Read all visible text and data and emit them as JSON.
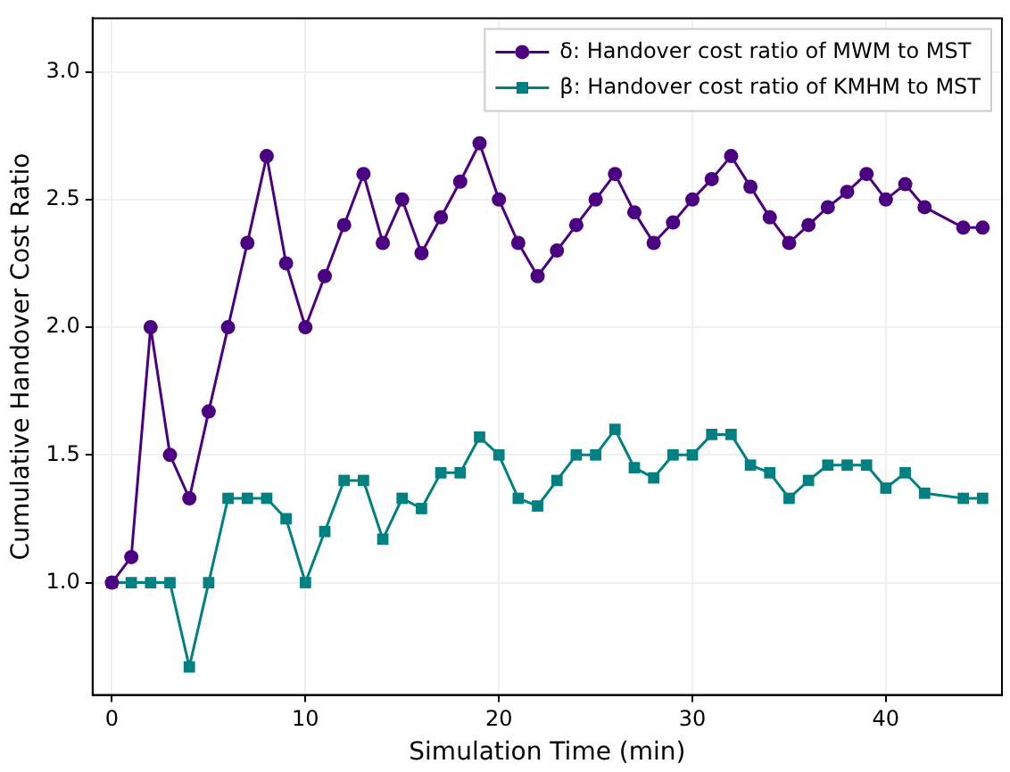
{
  "chart_data": {
    "type": "line",
    "xlabel": "Simulation Time (min)",
    "ylabel": "Cumulative Handover Cost Ratio",
    "x": [
      0,
      1,
      2,
      3,
      4,
      5,
      6,
      7,
      8,
      9,
      10,
      11,
      12,
      13,
      14,
      15,
      16,
      17,
      18,
      19,
      20,
      21,
      22,
      23,
      24,
      25,
      26,
      27,
      28,
      29,
      30,
      31,
      32,
      33,
      34,
      35,
      36,
      37,
      38,
      39,
      40,
      41,
      42,
      44,
      45
    ],
    "series": [
      {
        "name": "δ: Handover cost ratio of MWM to MST",
        "color": "#4b0082",
        "marker": "circle",
        "values": [
          1.0,
          1.1,
          2.0,
          1.5,
          1.33,
          1.67,
          2.0,
          2.33,
          2.67,
          2.25,
          2.0,
          2.2,
          2.4,
          2.6,
          2.33,
          2.5,
          2.29,
          2.43,
          2.57,
          2.72,
          2.5,
          2.33,
          2.2,
          2.3,
          2.4,
          2.5,
          2.6,
          2.45,
          2.33,
          2.41,
          2.5,
          2.58,
          2.67,
          2.55,
          2.43,
          2.33,
          2.4,
          2.47,
          2.53,
          2.6,
          2.5,
          2.56,
          2.47,
          2.39,
          2.39
        ]
      },
      {
        "name": "β: Handover cost ratio of KMHM to MST",
        "color": "#008080",
        "marker": "square",
        "values": [
          1.0,
          1.0,
          1.0,
          1.0,
          0.67,
          1.0,
          1.33,
          1.33,
          1.33,
          1.25,
          1.0,
          1.2,
          1.4,
          1.4,
          1.17,
          1.33,
          1.29,
          1.43,
          1.43,
          1.57,
          1.5,
          1.33,
          1.3,
          1.4,
          1.5,
          1.5,
          1.6,
          1.45,
          1.41,
          1.5,
          1.5,
          1.58,
          1.58,
          1.46,
          1.43,
          1.33,
          1.4,
          1.46,
          1.46,
          1.46,
          1.37,
          1.43,
          1.35,
          1.33,
          1.33
        ]
      }
    ],
    "xlim": [
      -1,
      46
    ],
    "ylim": [
      0.56,
      3.21
    ],
    "xticks": [
      0,
      10,
      20,
      30,
      40
    ],
    "yticks": [
      {
        "value": 1,
        "label": "1.0"
      },
      {
        "value": 1.5,
        "label": "1.5"
      },
      {
        "value": 2,
        "label": "2.0"
      },
      {
        "value": 2.5,
        "label": "2.5"
      },
      {
        "value": 3,
        "label": "3.0"
      }
    ],
    "grid": true,
    "legend": "top right",
    "line_style": "solid"
  }
}
